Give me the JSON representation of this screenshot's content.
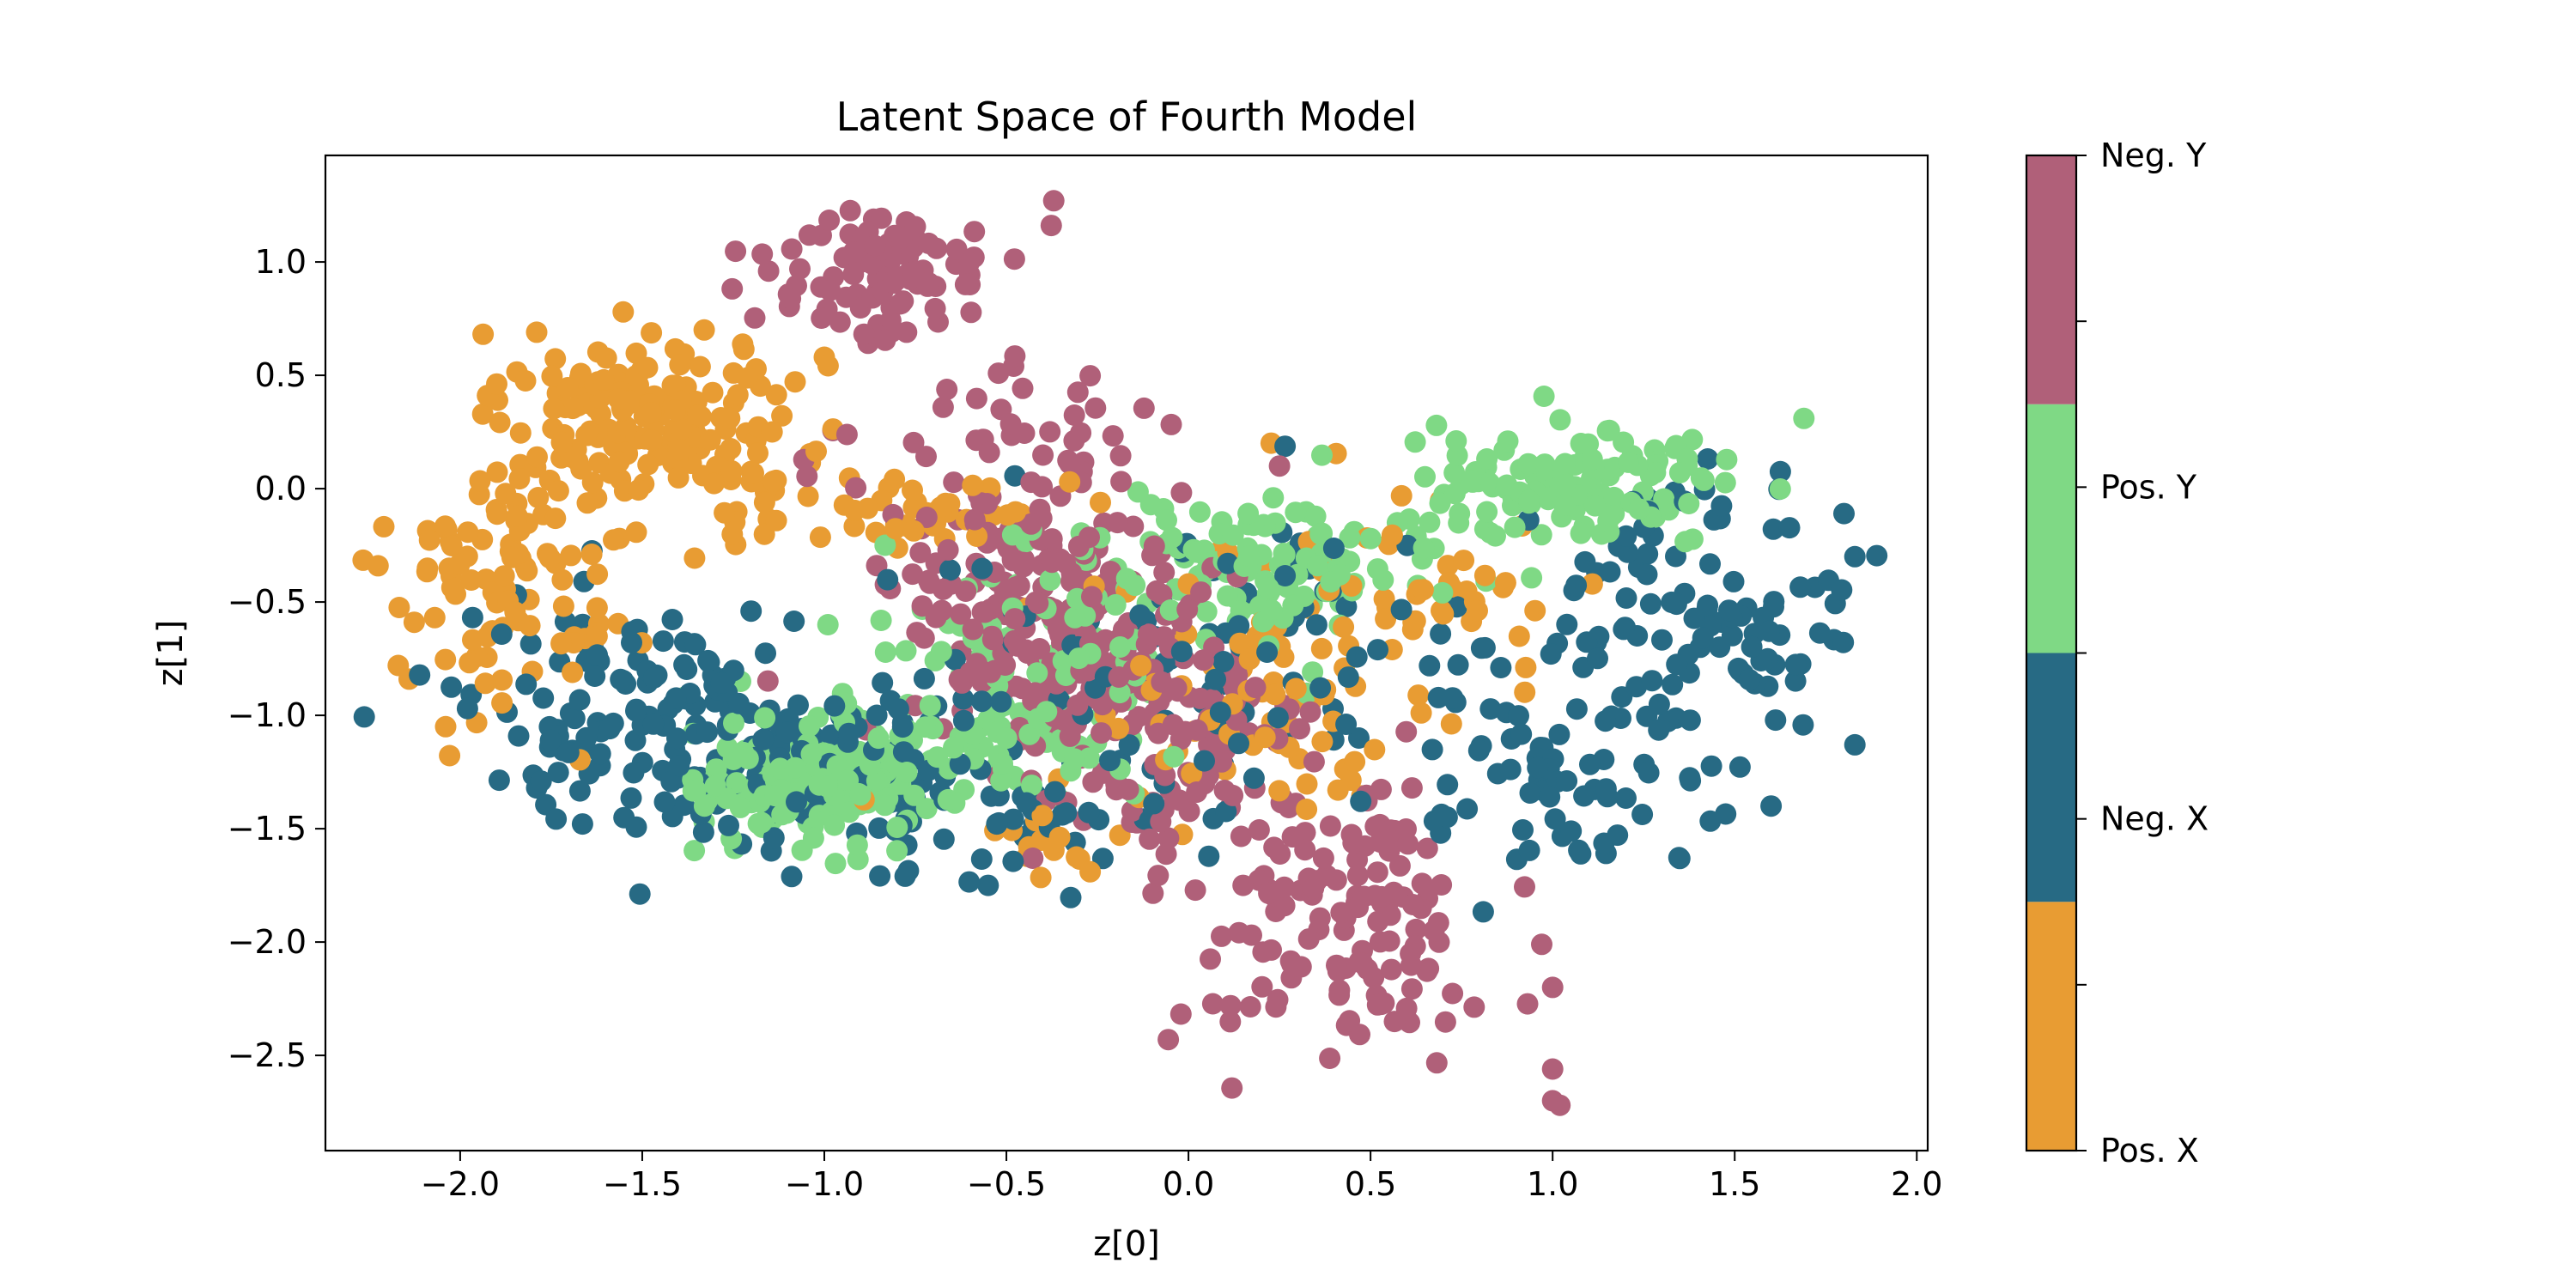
{
  "chart_data": {
    "type": "scatter",
    "title": "Latent Space of Fourth Model",
    "xlabel": "z[0]",
    "ylabel": "z[1]",
    "xlim": [
      -2.37,
      2.03
    ],
    "ylim": [
      -2.92,
      1.47
    ],
    "x_ticks": [
      -2.0,
      -1.5,
      -1.0,
      -0.5,
      0.0,
      0.5,
      1.0,
      1.5,
      2.0
    ],
    "x_tick_labels": [
      "−2.0",
      "−1.5",
      "−1.0",
      "−0.5",
      "0.0",
      "0.5",
      "1.0",
      "1.5",
      "2.0"
    ],
    "y_ticks": [
      1.0,
      0.5,
      0.0,
      -0.5,
      -1.0,
      -1.5,
      -2.0,
      -2.5
    ],
    "y_tick_labels": [
      "1.0",
      "0.5",
      "0.0",
      "−0.5",
      "−1.0",
      "−1.5",
      "−2.0",
      "−2.5"
    ],
    "grid": false,
    "colorbar": {
      "categories": [
        "Pos. X",
        "Neg. X",
        "Pos. Y",
        "Neg. Y"
      ],
      "colors": [
        "#E89C33",
        "#276A84",
        "#7FD985",
        "#B06079"
      ],
      "labels_top_to_bottom": [
        "Neg. Y",
        "Pos. Y",
        "Neg. X",
        "Pos. X"
      ]
    },
    "series": [
      {
        "category": "Pos. X",
        "color": "#E89C33",
        "clusters": [
          {
            "cx": -1.55,
            "cy": 0.35,
            "sx": 0.16,
            "sy": 0.17,
            "n": 130
          },
          {
            "cx": -1.82,
            "cy": -0.35,
            "sx": 0.18,
            "sy": 0.32,
            "n": 110
          },
          {
            "cx": -1.15,
            "cy": 0.15,
            "sx": 0.14,
            "sy": 0.2,
            "n": 45
          },
          {
            "cx": -0.7,
            "cy": -0.1,
            "sx": 0.18,
            "sy": 0.12,
            "n": 40
          },
          {
            "cx": 0.55,
            "cy": -0.5,
            "sx": 0.3,
            "sy": 0.25,
            "n": 60
          },
          {
            "cx": 0.2,
            "cy": -1.0,
            "sx": 0.25,
            "sy": 0.3,
            "n": 60
          },
          {
            "cx": -0.35,
            "cy": -1.5,
            "sx": 0.2,
            "sy": 0.12,
            "n": 15
          }
        ],
        "points": [
          [
            -1.79,
            0.69
          ],
          [
            -2.17,
            -0.78
          ],
          [
            -2.14,
            -0.84
          ],
          [
            -2.04,
            -1.05
          ],
          [
            -1.33,
            0.7
          ],
          [
            -1.0,
            0.58
          ],
          [
            -0.27,
            -1.69
          ]
        ]
      },
      {
        "category": "Neg. X",
        "color": "#276A84",
        "clusters": [
          {
            "cx": -1.45,
            "cy": -1.0,
            "sx": 0.28,
            "sy": 0.24,
            "n": 150
          },
          {
            "cx": -0.95,
            "cy": -1.3,
            "sx": 0.22,
            "sy": 0.22,
            "n": 70
          },
          {
            "cx": 1.45,
            "cy": -0.5,
            "sx": 0.2,
            "sy": 0.28,
            "n": 100
          },
          {
            "cx": 1.05,
            "cy": -1.25,
            "sx": 0.25,
            "sy": 0.22,
            "n": 70
          },
          {
            "cx": 0.1,
            "cy": -0.8,
            "sx": 0.45,
            "sy": 0.35,
            "n": 100
          },
          {
            "cx": -0.4,
            "cy": -1.4,
            "sx": 0.2,
            "sy": 0.15,
            "n": 30
          }
        ],
        "points": [
          [
            -1.66,
            -0.41
          ],
          [
            -1.79,
            -1.32
          ],
          [
            -1.98,
            -0.97
          ],
          [
            1.8,
            -0.11
          ],
          [
            1.83,
            -0.3
          ],
          [
            1.83,
            -1.13
          ],
          [
            1.6,
            -1.4
          ],
          [
            -0.55,
            -1.75
          ]
        ]
      },
      {
        "category": "Pos. Y",
        "color": "#7FD985",
        "clusters": [
          {
            "cx": -1.05,
            "cy": -1.3,
            "sx": 0.14,
            "sy": 0.13,
            "n": 180
          },
          {
            "cx": -0.55,
            "cy": -1.05,
            "sx": 0.2,
            "sy": 0.15,
            "n": 60
          },
          {
            "cx": 1.05,
            "cy": 0.0,
            "sx": 0.22,
            "sy": 0.13,
            "n": 130
          },
          {
            "cx": 0.2,
            "cy": -0.35,
            "sx": 0.25,
            "sy": 0.15,
            "n": 110
          },
          {
            "cx": -0.35,
            "cy": -0.7,
            "sx": 0.25,
            "sy": 0.25,
            "n": 70
          }
        ],
        "points": [
          [
            1.69,
            0.31
          ],
          [
            -1.33,
            -1.47
          ],
          [
            -1.23,
            -0.85
          ],
          [
            0.73,
            0.07
          ],
          [
            -0.99,
            -0.6
          ]
        ]
      },
      {
        "category": "Neg. Y",
        "color": "#B06079",
        "clusters": [
          {
            "cx": -0.85,
            "cy": 0.95,
            "sx": 0.15,
            "sy": 0.15,
            "n": 100
          },
          {
            "cx": -0.45,
            "cy": -0.5,
            "sx": 0.22,
            "sy": 0.35,
            "n": 200
          },
          {
            "cx": -0.05,
            "cy": -1.1,
            "sx": 0.2,
            "sy": 0.3,
            "n": 120
          },
          {
            "cx": 0.4,
            "cy": -1.9,
            "sx": 0.2,
            "sy": 0.32,
            "n": 140
          },
          {
            "cx": -0.45,
            "cy": 0.25,
            "sx": 0.2,
            "sy": 0.12,
            "n": 30
          }
        ],
        "points": [
          [
            -0.37,
            1.27
          ],
          [
            -0.6,
            0.9
          ],
          [
            -0.48,
            0.54
          ],
          [
            1.0,
            -2.7
          ],
          [
            1.02,
            -2.72
          ],
          [
            1.0,
            -2.56
          ],
          [
            0.97,
            -2.01
          ],
          [
            1.0,
            -2.2
          ],
          [
            0.25,
            0.1
          ],
          [
            0.15,
            -1.75
          ]
        ]
      }
    ]
  }
}
